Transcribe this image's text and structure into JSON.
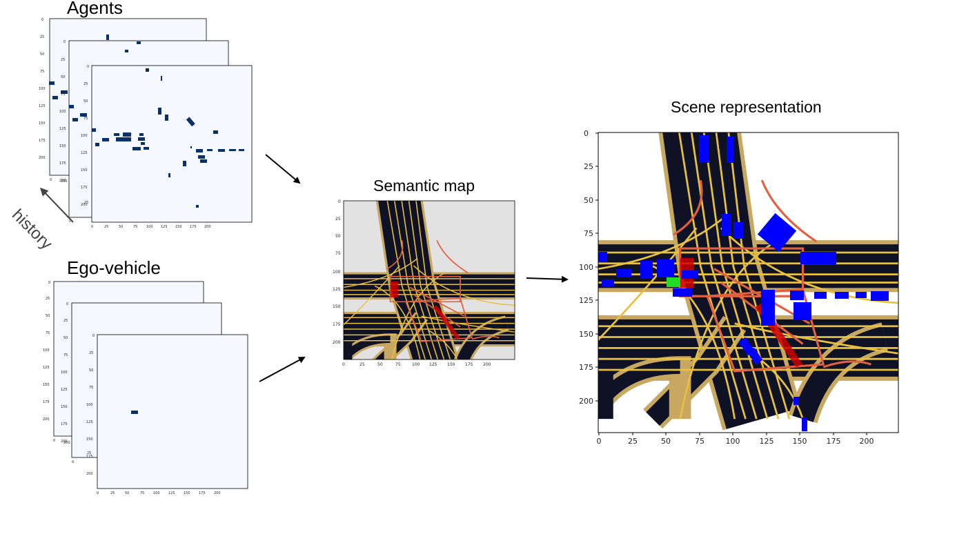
{
  "labels": {
    "agents": "Agents",
    "ego_vehicle": "Ego-vehicle",
    "history": "history",
    "semantic_map": "Semantic map",
    "scene_representation": "Scene representation"
  },
  "axes": {
    "scene_x_ticks": [
      "0",
      "25",
      "50",
      "75",
      "100",
      "125",
      "150",
      "175",
      "200"
    ],
    "scene_y_ticks": [
      "0",
      "25",
      "50",
      "75",
      "100",
      "125",
      "150",
      "175",
      "200"
    ],
    "small_x_ticks": [
      "0",
      "25",
      "50",
      "75",
      "100",
      "125",
      "150",
      "175",
      "200"
    ],
    "small_y_ticks": [
      "0",
      "25",
      "50",
      "75",
      "100",
      "125",
      "150",
      "175",
      "200"
    ]
  },
  "colors": {
    "frame_fill": "#f5f9ff",
    "agent_blob": "#08306b",
    "scene_agent": "#0000ff",
    "ego": "#22dd22",
    "road": "#0f1225",
    "lane": "#e8c040",
    "crosswalk": "#e06040",
    "map_bg": "#e2e2e2"
  }
}
